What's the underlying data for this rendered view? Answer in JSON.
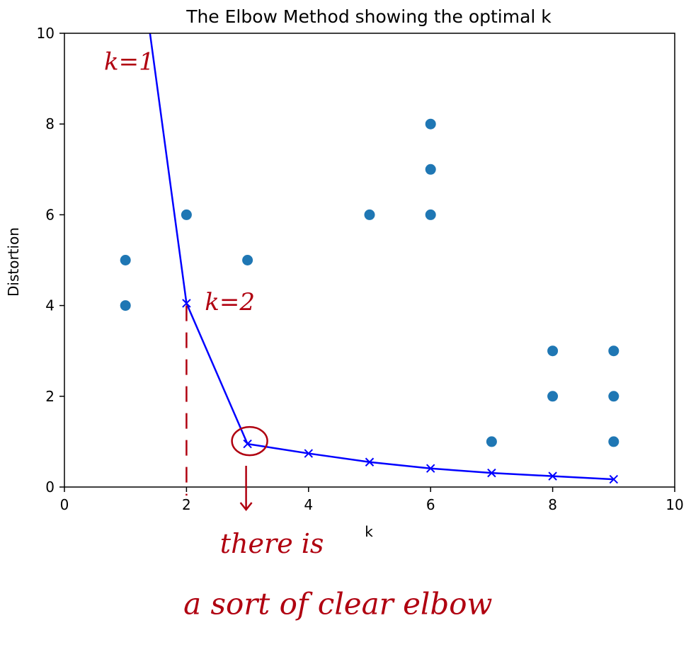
{
  "chart_data": {
    "type": "scatter",
    "title": "The Elbow Method showing the optimal k",
    "xlabel": "k",
    "ylabel": "Distortion",
    "xlim": [
      0,
      10
    ],
    "ylim": [
      0,
      10
    ],
    "xticks": [
      0,
      2,
      4,
      6,
      8,
      10
    ],
    "yticks": [
      0,
      2,
      4,
      6,
      8,
      10
    ],
    "grid": false,
    "series": [
      {
        "kind": "scatter",
        "color": "#1f77b4",
        "points": [
          [
            1,
            5
          ],
          [
            1,
            4
          ],
          [
            2,
            6
          ],
          [
            3,
            5
          ],
          [
            5,
            6
          ],
          [
            6,
            8
          ],
          [
            6,
            7
          ],
          [
            6,
            6
          ],
          [
            7,
            1
          ],
          [
            8,
            3
          ],
          [
            8,
            2
          ],
          [
            9,
            3
          ],
          [
            9,
            2
          ],
          [
            9,
            1
          ]
        ]
      },
      {
        "kind": "line",
        "marker": "x",
        "color": "#0000ff",
        "x": [
          1,
          2,
          3,
          4,
          5,
          6,
          7,
          8,
          9
        ],
        "y": [
          14.0,
          4.05,
          0.95,
          0.74,
          0.55,
          0.41,
          0.31,
          0.24,
          0.17
        ]
      }
    ],
    "annotations": [
      {
        "text": "k=1",
        "x": 0.65,
        "y": 9.2
      },
      {
        "text": "k=2",
        "x": 2.3,
        "y": 3.9
      },
      {
        "text": "there is",
        "x": 2.55,
        "y": -1.45
      },
      {
        "text": "a sort of clear elbow",
        "x": 1.95,
        "y": -2.8
      }
    ]
  }
}
